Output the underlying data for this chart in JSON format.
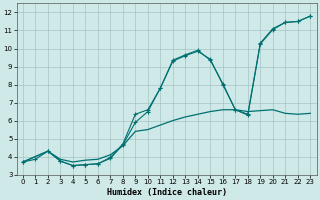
{
  "xlabel": "Humidex (Indice chaleur)",
  "bg_color": "#cfe8e8",
  "grid_color": "#9bbcbc",
  "line_color": "#007070",
  "xlim": [
    -0.5,
    23.5
  ],
  "ylim": [
    3,
    12.5
  ],
  "xticks": [
    0,
    1,
    2,
    3,
    4,
    5,
    6,
    7,
    8,
    9,
    10,
    11,
    12,
    13,
    14,
    15,
    16,
    17,
    18,
    19,
    20,
    21,
    22,
    23
  ],
  "yticks": [
    3,
    4,
    5,
    6,
    7,
    8,
    9,
    10,
    11,
    12
  ],
  "line1_x": [
    0,
    1,
    2,
    3,
    4,
    5,
    6,
    7,
    8,
    9,
    10,
    11,
    12,
    13,
    14,
    15,
    16,
    17,
    18,
    19,
    20,
    21,
    22,
    23
  ],
  "line1_y": [
    3.7,
    3.85,
    4.3,
    3.75,
    3.5,
    3.55,
    3.6,
    3.9,
    4.65,
    5.9,
    6.5,
    7.8,
    9.3,
    9.6,
    9.85,
    9.4,
    8.0,
    6.6,
    6.35,
    10.3,
    11.1,
    11.45,
    11.5,
    11.8
  ],
  "line2_x": [
    0,
    2,
    3,
    4,
    5,
    6,
    7,
    8,
    9,
    10,
    11,
    12,
    13,
    14,
    15,
    16,
    17,
    18,
    19,
    20,
    21,
    22,
    23
  ],
  "line2_y": [
    3.7,
    4.3,
    3.75,
    3.5,
    3.55,
    3.6,
    3.95,
    4.7,
    6.35,
    6.6,
    7.8,
    9.35,
    9.65,
    9.9,
    9.35,
    8.05,
    6.6,
    6.3,
    10.25,
    11.05,
    11.45,
    11.5,
    11.8
  ],
  "line3_x": [
    0,
    2,
    3,
    4,
    5,
    6,
    7,
    8,
    9,
    10,
    11,
    12,
    13,
    14,
    15,
    16,
    17,
    18,
    19,
    20,
    21,
    22,
    23
  ],
  "line3_y": [
    3.7,
    4.3,
    3.85,
    3.7,
    3.8,
    3.85,
    4.1,
    4.6,
    5.4,
    5.5,
    5.75,
    6.0,
    6.2,
    6.35,
    6.5,
    6.6,
    6.6,
    6.5,
    6.55,
    6.6,
    6.4,
    6.35,
    6.4
  ]
}
